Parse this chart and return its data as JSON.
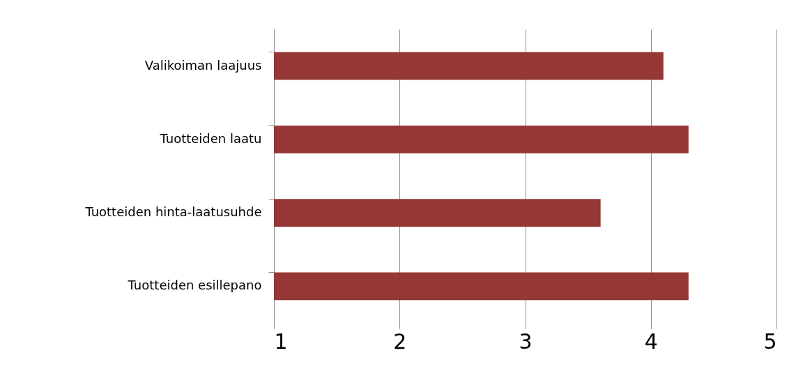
{
  "chart_data": {
    "type": "bar",
    "orientation": "horizontal",
    "categories": [
      "Valikoiman laajuus",
      "Tuotteiden laatu",
      "Tuotteiden hinta-laatusuhde",
      "Tuotteiden esillepano"
    ],
    "values": [
      4.1,
      4.3,
      3.6,
      4.3
    ],
    "color": "#953735",
    "xlim": [
      1,
      5
    ],
    "xticks": [
      1,
      2,
      3,
      4,
      5
    ],
    "grid": "x"
  }
}
